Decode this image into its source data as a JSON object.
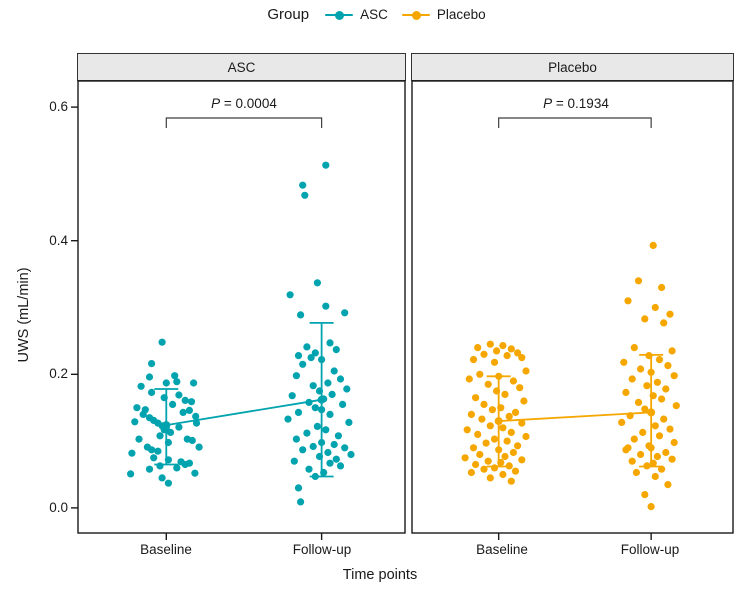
{
  "colors": {
    "asc": "#00A3AE",
    "placebo": "#F5A700",
    "axis": "#1A1A1A",
    "strip_bg": "#E8E8E8",
    "bracket": "#3F3F3F"
  },
  "legend": {
    "title": "Group",
    "items": [
      {
        "label": "ASC",
        "color": "#00A3AE"
      },
      {
        "label": "Placebo",
        "color": "#F5A700"
      }
    ]
  },
  "chart_data": {
    "type": "scatter",
    "subtype": "jittered-points-with-mean-errorbar-facets",
    "title": "",
    "xlabel": "Time points",
    "ylabel": "UWS (mL/min)",
    "x_categories": [
      "Baseline",
      "Follow-up"
    ],
    "ylim": [
      -0.0375,
      0.639
    ],
    "yticks": [
      0.0,
      0.2,
      0.4,
      0.6
    ],
    "ytick_labels": [
      "0.0",
      "0.2",
      "0.4",
      "0.6"
    ],
    "grid": false,
    "legend_position": "top",
    "facets": [
      {
        "label": "ASC",
        "color": "#00A3AE",
        "p_symbol": "P",
        "p_rest": " = 0.0004",
        "summary": [
          {
            "x": "Baseline",
            "mean": 0.124,
            "lower": 0.065,
            "upper": 0.178
          },
          {
            "x": "Follow-up",
            "mean": 0.162,
            "lower": 0.047,
            "upper": 0.277
          }
        ],
        "points": {
          "Baseline": [
            [
              -0.1,
              0.248
            ],
            [
              -0.35,
              0.216
            ],
            [
              0.2,
              0.198
            ],
            [
              -0.4,
              0.196
            ],
            [
              0.0,
              0.187
            ],
            [
              0.25,
              0.189
            ],
            [
              -0.6,
              0.182
            ],
            [
              0.65,
              0.187
            ],
            [
              -0.35,
              0.173
            ],
            [
              0.3,
              0.169
            ],
            [
              0.45,
              0.161
            ],
            [
              0.6,
              0.159
            ],
            [
              -0.7,
              0.15
            ],
            [
              -0.5,
              0.147
            ],
            [
              0.55,
              0.146
            ],
            [
              0.7,
              0.137
            ],
            [
              -0.4,
              0.135
            ],
            [
              -0.3,
              0.131
            ],
            [
              -0.75,
              0.129
            ],
            [
              -0.2,
              0.127
            ],
            [
              0.72,
              0.127
            ],
            [
              -0.1,
              0.123
            ],
            [
              0.3,
              0.121
            ],
            [
              0.0,
              0.12
            ],
            [
              -0.05,
              0.117
            ],
            [
              0.1,
              0.113
            ],
            [
              -0.15,
              0.108
            ],
            [
              -0.65,
              0.103
            ],
            [
              0.5,
              0.103
            ],
            [
              0.62,
              0.101
            ],
            [
              0.05,
              0.098
            ],
            [
              -0.45,
              0.091
            ],
            [
              0.78,
              0.091
            ],
            [
              -0.35,
              0.087
            ],
            [
              -0.2,
              0.085
            ],
            [
              -0.82,
              0.082
            ],
            [
              -0.3,
              0.075
            ],
            [
              0.05,
              0.072
            ],
            [
              0.35,
              0.069
            ],
            [
              0.55,
              0.067
            ],
            [
              0.45,
              0.065
            ],
            [
              -0.15,
              0.063
            ],
            [
              0.25,
              0.06
            ],
            [
              -0.4,
              0.058
            ],
            [
              0.68,
              0.052
            ],
            [
              -0.85,
              0.051
            ],
            [
              -0.1,
              0.045
            ],
            [
              0.05,
              0.037
            ],
            [
              -0.55,
              0.14
            ],
            [
              0.15,
              0.155
            ],
            [
              -0.05,
              0.165
            ],
            [
              0.4,
              0.143
            ]
          ],
          "Follow-up": [
            [
              0.1,
              0.513
            ],
            [
              -0.45,
              0.483
            ],
            [
              -0.4,
              0.468
            ],
            [
              -0.1,
              0.337
            ],
            [
              -0.75,
              0.319
            ],
            [
              0.1,
              0.302
            ],
            [
              0.55,
              0.292
            ],
            [
              -0.5,
              0.289
            ],
            [
              0.2,
              0.247
            ],
            [
              -0.35,
              0.241
            ],
            [
              0.35,
              0.237
            ],
            [
              -0.15,
              0.232
            ],
            [
              -0.55,
              0.228
            ],
            [
              -0.25,
              0.225
            ],
            [
              0.0,
              0.222
            ],
            [
              -0.45,
              0.215
            ],
            [
              0.3,
              0.205
            ],
            [
              -0.6,
              0.198
            ],
            [
              0.45,
              0.193
            ],
            [
              0.15,
              0.187
            ],
            [
              -0.2,
              0.183
            ],
            [
              0.6,
              0.178
            ],
            [
              -0.05,
              0.175
            ],
            [
              0.25,
              0.17
            ],
            [
              -0.7,
              0.168
            ],
            [
              0.05,
              0.163
            ],
            [
              -0.3,
              0.158
            ],
            [
              0.5,
              0.155
            ],
            [
              -0.15,
              0.15
            ],
            [
              0.0,
              0.147
            ],
            [
              -0.55,
              0.143
            ],
            [
              0.2,
              0.14
            ],
            [
              -0.8,
              0.133
            ],
            [
              0.65,
              0.128
            ],
            [
              -0.1,
              0.122
            ],
            [
              0.1,
              0.117
            ],
            [
              -0.35,
              0.112
            ],
            [
              0.4,
              0.108
            ],
            [
              -0.6,
              0.103
            ],
            [
              0.0,
              0.098
            ],
            [
              0.3,
              0.095
            ],
            [
              -0.2,
              0.092
            ],
            [
              0.55,
              0.09
            ],
            [
              -0.45,
              0.087
            ],
            [
              0.15,
              0.083
            ],
            [
              0.7,
              0.08
            ],
            [
              -0.05,
              0.077
            ],
            [
              0.35,
              0.073
            ],
            [
              -0.65,
              0.07
            ],
            [
              0.2,
              0.067
            ],
            [
              0.45,
              0.063
            ],
            [
              -0.3,
              0.058
            ],
            [
              0.05,
              0.053
            ],
            [
              -0.15,
              0.047
            ],
            [
              -0.55,
              0.03
            ],
            [
              -0.5,
              0.009
            ]
          ]
        }
      },
      {
        "label": "Placebo",
        "color": "#F5A700",
        "p_symbol": "P",
        "p_rest": " = 0.1934",
        "summary": [
          {
            "x": "Baseline",
            "mean": 0.13,
            "lower": 0.062,
            "upper": 0.197
          },
          {
            "x": "Follow-up",
            "mean": 0.143,
            "lower": 0.062,
            "upper": 0.229
          }
        ],
        "points": {
          "Baseline": [
            [
              -0.2,
              0.245
            ],
            [
              0.1,
              0.243
            ],
            [
              -0.5,
              0.24
            ],
            [
              0.3,
              0.238
            ],
            [
              -0.05,
              0.235
            ],
            [
              0.45,
              0.232
            ],
            [
              -0.35,
              0.23
            ],
            [
              0.2,
              0.228
            ],
            [
              0.55,
              0.225
            ],
            [
              -0.6,
              0.222
            ],
            [
              -0.1,
              0.218
            ],
            [
              0.65,
              0.205
            ],
            [
              -0.45,
              0.2
            ],
            [
              0.0,
              0.197
            ],
            [
              -0.7,
              0.193
            ],
            [
              0.35,
              0.19
            ],
            [
              -0.25,
              0.185
            ],
            [
              0.5,
              0.18
            ],
            [
              -0.05,
              0.175
            ],
            [
              0.15,
              0.17
            ],
            [
              -0.55,
              0.165
            ],
            [
              0.6,
              0.16
            ],
            [
              -0.35,
              0.155
            ],
            [
              0.05,
              0.15
            ],
            [
              -0.15,
              0.147
            ],
            [
              0.4,
              0.143
            ],
            [
              -0.65,
              0.14
            ],
            [
              0.25,
              0.137
            ],
            [
              -0.4,
              0.133
            ],
            [
              0.0,
              0.13
            ],
            [
              0.55,
              0.127
            ],
            [
              -0.2,
              0.123
            ],
            [
              0.1,
              0.12
            ],
            [
              -0.75,
              0.117
            ],
            [
              0.3,
              0.113
            ],
            [
              -0.5,
              0.11
            ],
            [
              0.65,
              0.107
            ],
            [
              -0.1,
              0.103
            ],
            [
              0.2,
              0.1
            ],
            [
              -0.3,
              0.097
            ],
            [
              0.45,
              0.093
            ],
            [
              -0.6,
              0.09
            ],
            [
              0.0,
              0.087
            ],
            [
              0.35,
              0.083
            ],
            [
              -0.45,
              0.08
            ],
            [
              0.15,
              0.077
            ],
            [
              -0.8,
              0.075
            ],
            [
              0.55,
              0.072
            ],
            [
              -0.25,
              0.07
            ],
            [
              0.05,
              0.068
            ],
            [
              -0.55,
              0.065
            ],
            [
              0.25,
              0.063
            ],
            [
              -0.1,
              0.06
            ],
            [
              -0.35,
              0.058
            ],
            [
              0.4,
              0.055
            ],
            [
              -0.65,
              0.053
            ],
            [
              0.1,
              0.05
            ],
            [
              -0.2,
              0.045
            ],
            [
              0.3,
              0.04
            ]
          ],
          "Follow-up": [
            [
              0.05,
              0.393
            ],
            [
              -0.3,
              0.34
            ],
            [
              0.25,
              0.33
            ],
            [
              -0.55,
              0.31
            ],
            [
              0.1,
              0.3
            ],
            [
              0.45,
              0.29
            ],
            [
              -0.15,
              0.283
            ],
            [
              0.3,
              0.277
            ],
            [
              -0.4,
              0.24
            ],
            [
              0.5,
              0.235
            ],
            [
              -0.05,
              0.228
            ],
            [
              0.2,
              0.222
            ],
            [
              -0.65,
              0.218
            ],
            [
              0.4,
              0.213
            ],
            [
              -0.25,
              0.208
            ],
            [
              0.0,
              0.203
            ],
            [
              0.55,
              0.198
            ],
            [
              -0.45,
              0.193
            ],
            [
              0.15,
              0.188
            ],
            [
              -0.1,
              0.183
            ],
            [
              0.35,
              0.178
            ],
            [
              -0.6,
              0.173
            ],
            [
              0.05,
              0.168
            ],
            [
              0.25,
              0.163
            ],
            [
              -0.3,
              0.158
            ],
            [
              0.6,
              0.153
            ],
            [
              -0.15,
              0.148
            ],
            [
              0.0,
              0.143
            ],
            [
              -0.5,
              0.138
            ],
            [
              0.3,
              0.133
            ],
            [
              -0.7,
              0.128
            ],
            [
              0.1,
              0.123
            ],
            [
              0.45,
              0.118
            ],
            [
              -0.2,
              0.113
            ],
            [
              0.2,
              0.108
            ],
            [
              -0.4,
              0.103
            ],
            [
              0.55,
              0.098
            ],
            [
              -0.05,
              0.093
            ],
            [
              -0.55,
              0.09
            ],
            [
              0.0,
              0.09
            ],
            [
              -0.6,
              0.087
            ],
            [
              0.35,
              0.083
            ],
            [
              -0.25,
              0.08
            ],
            [
              0.15,
              0.077
            ],
            [
              0.5,
              0.073
            ],
            [
              -0.45,
              0.07
            ],
            [
              0.05,
              0.067
            ],
            [
              -0.1,
              0.063
            ],
            [
              0.25,
              0.058
            ],
            [
              -0.35,
              0.053
            ],
            [
              0.1,
              0.047
            ],
            [
              0.4,
              0.035
            ],
            [
              -0.15,
              0.02
            ],
            [
              0.0,
              0.002
            ]
          ]
        }
      }
    ]
  }
}
